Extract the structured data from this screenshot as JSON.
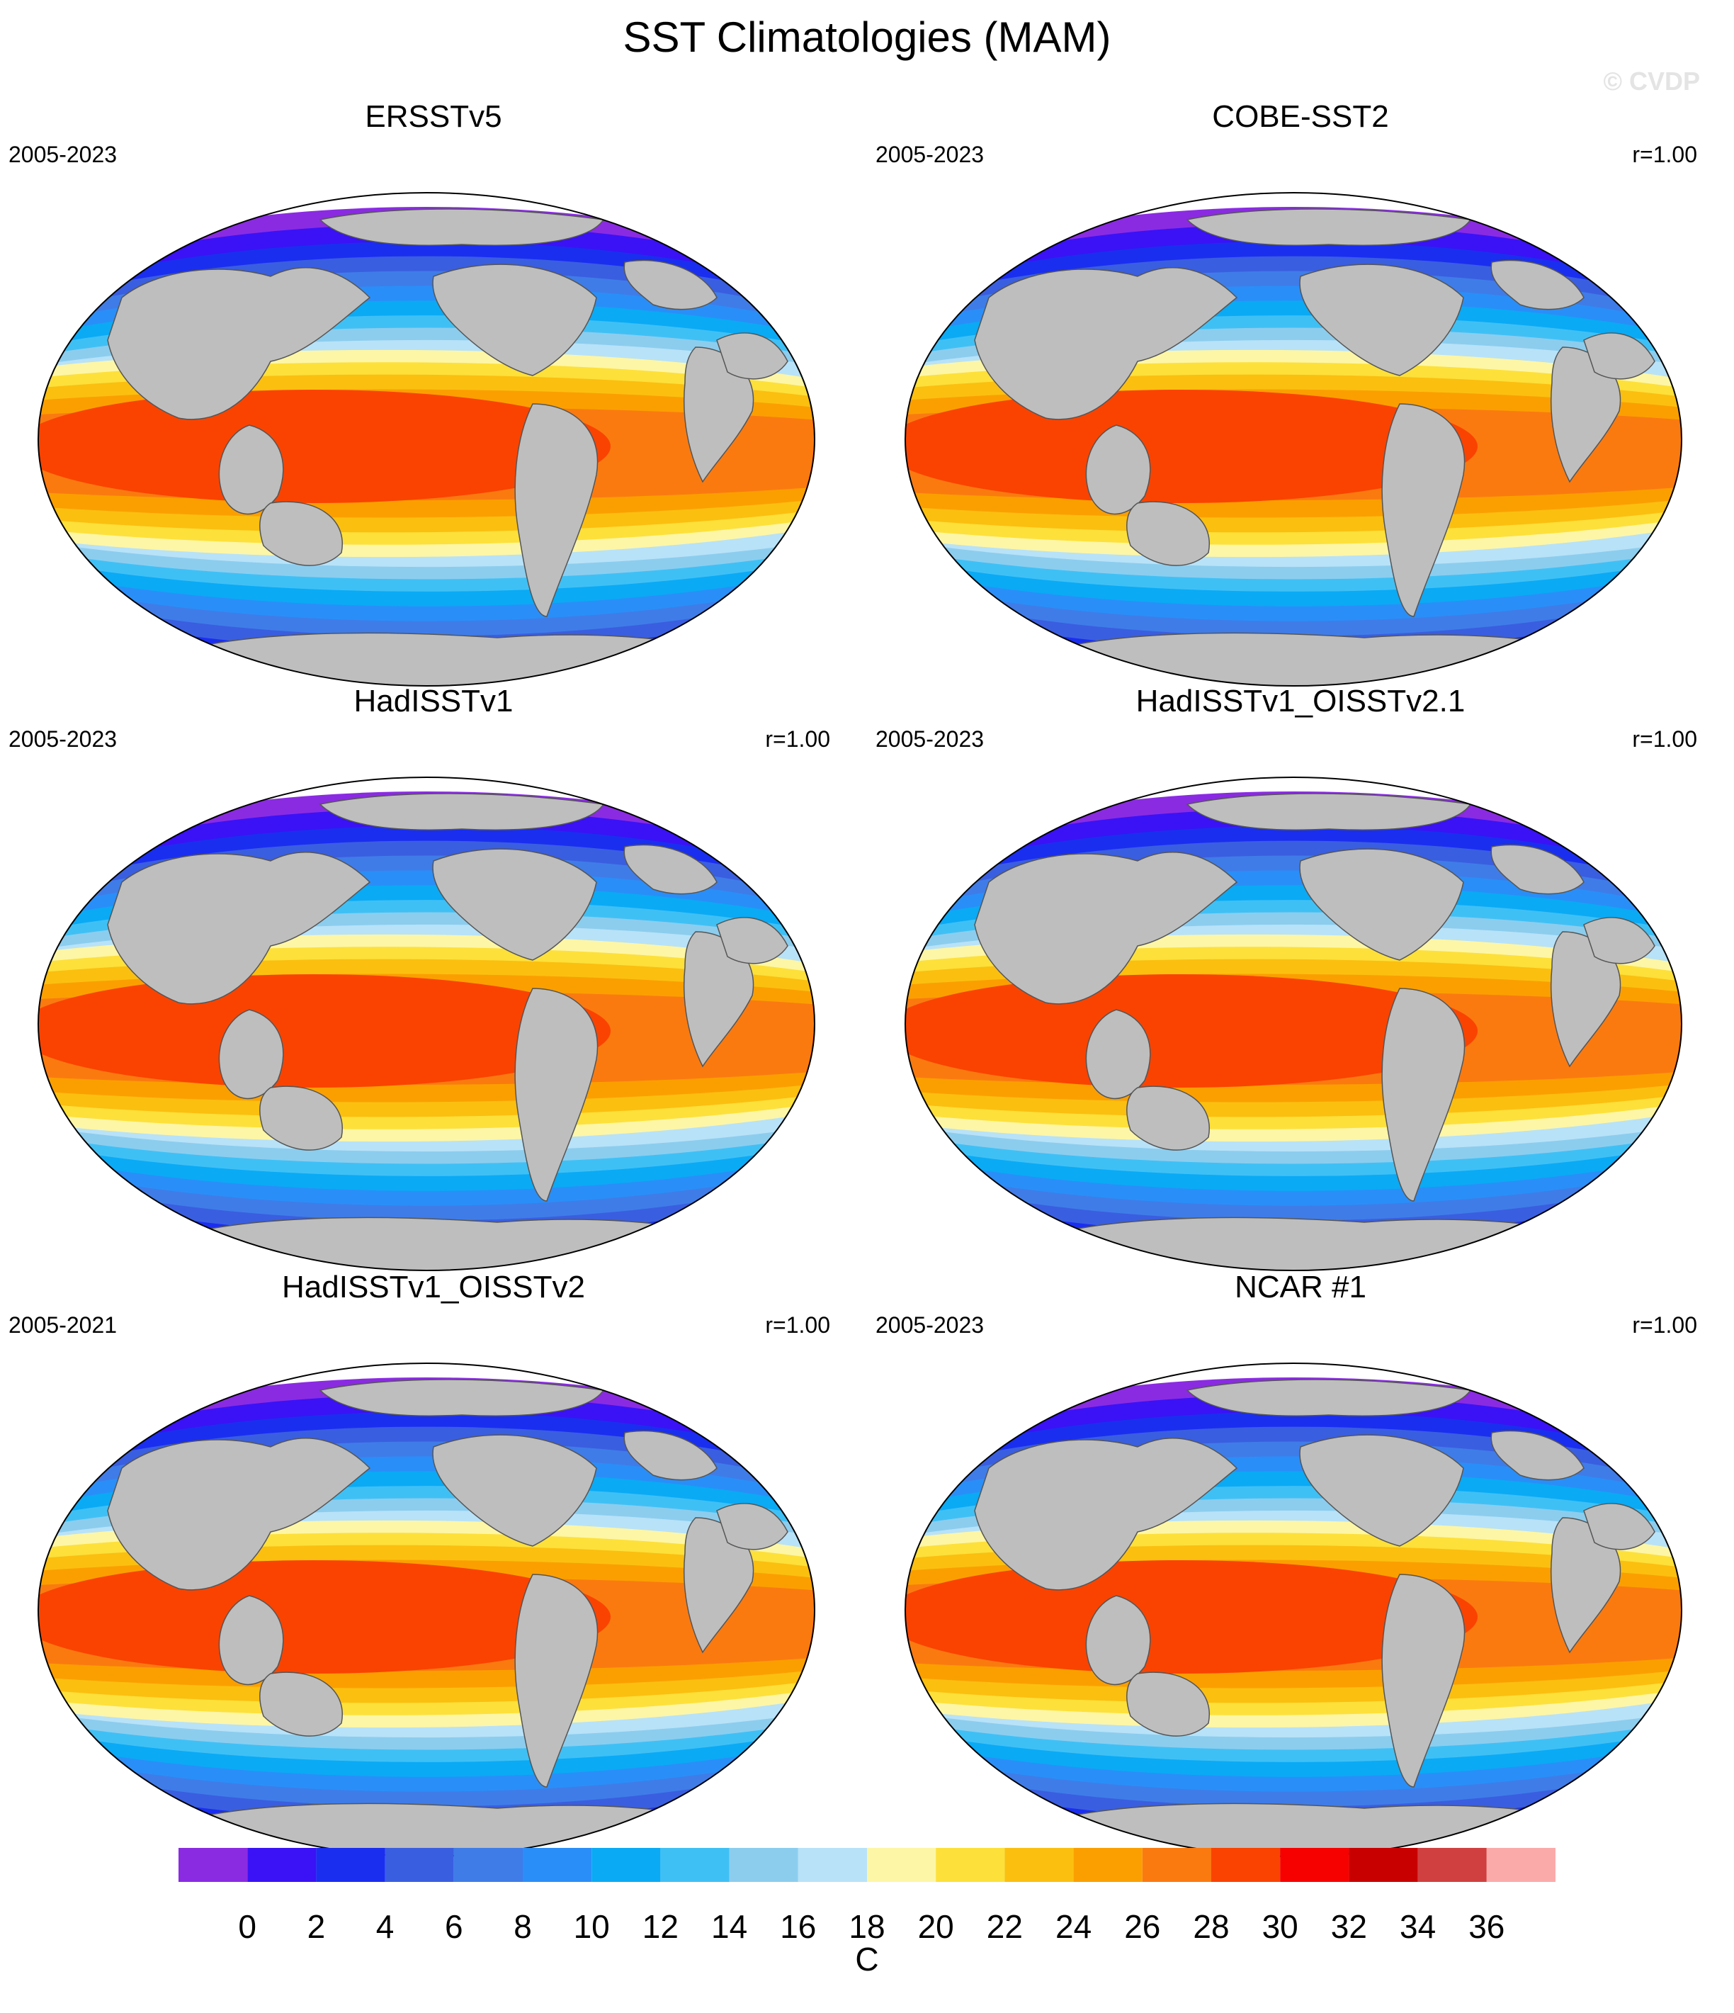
{
  "title": "SST Climatologies (MAM)",
  "watermark": "© CVDP",
  "units": "C",
  "colorbar": {
    "ticks": [
      "0",
      "2",
      "4",
      "6",
      "8",
      "10",
      "12",
      "14",
      "16",
      "18",
      "20",
      "22",
      "24",
      "26",
      "28",
      "30",
      "32",
      "34",
      "36"
    ],
    "colors": [
      "#8a2be2",
      "#3a12f5",
      "#1a2ef0",
      "#3a5ee0",
      "#3f7ce8",
      "#2a8ef8",
      "#0aaaf5",
      "#3fc0f5",
      "#8ccdee",
      "#b8e2f8",
      "#fdf6a6",
      "#fde03a",
      "#fbbf10",
      "#fb9f00",
      "#fa7a10",
      "#fa4300",
      "#f70000",
      "#c80000",
      "#d04040",
      "#fbaaaa"
    ]
  },
  "land_color": "#bebebe",
  "panels": [
    {
      "title": "ERSSTv5",
      "period": "2005-2023",
      "r": ""
    },
    {
      "title": "COBE-SST2",
      "period": "2005-2023",
      "r": "r=1.00"
    },
    {
      "title": "HadISSTv1",
      "period": "2005-2023",
      "r": "r=1.00"
    },
    {
      "title": "HadISSTv1_OISSTv2.1",
      "period": "2005-2023",
      "r": "r=1.00"
    },
    {
      "title": "HadISSTv1_OISSTv2",
      "period": "2005-2021",
      "r": "r=1.00"
    },
    {
      "title": "NCAR #1",
      "period": "2005-2023",
      "r": "r=1.00"
    }
  ]
}
